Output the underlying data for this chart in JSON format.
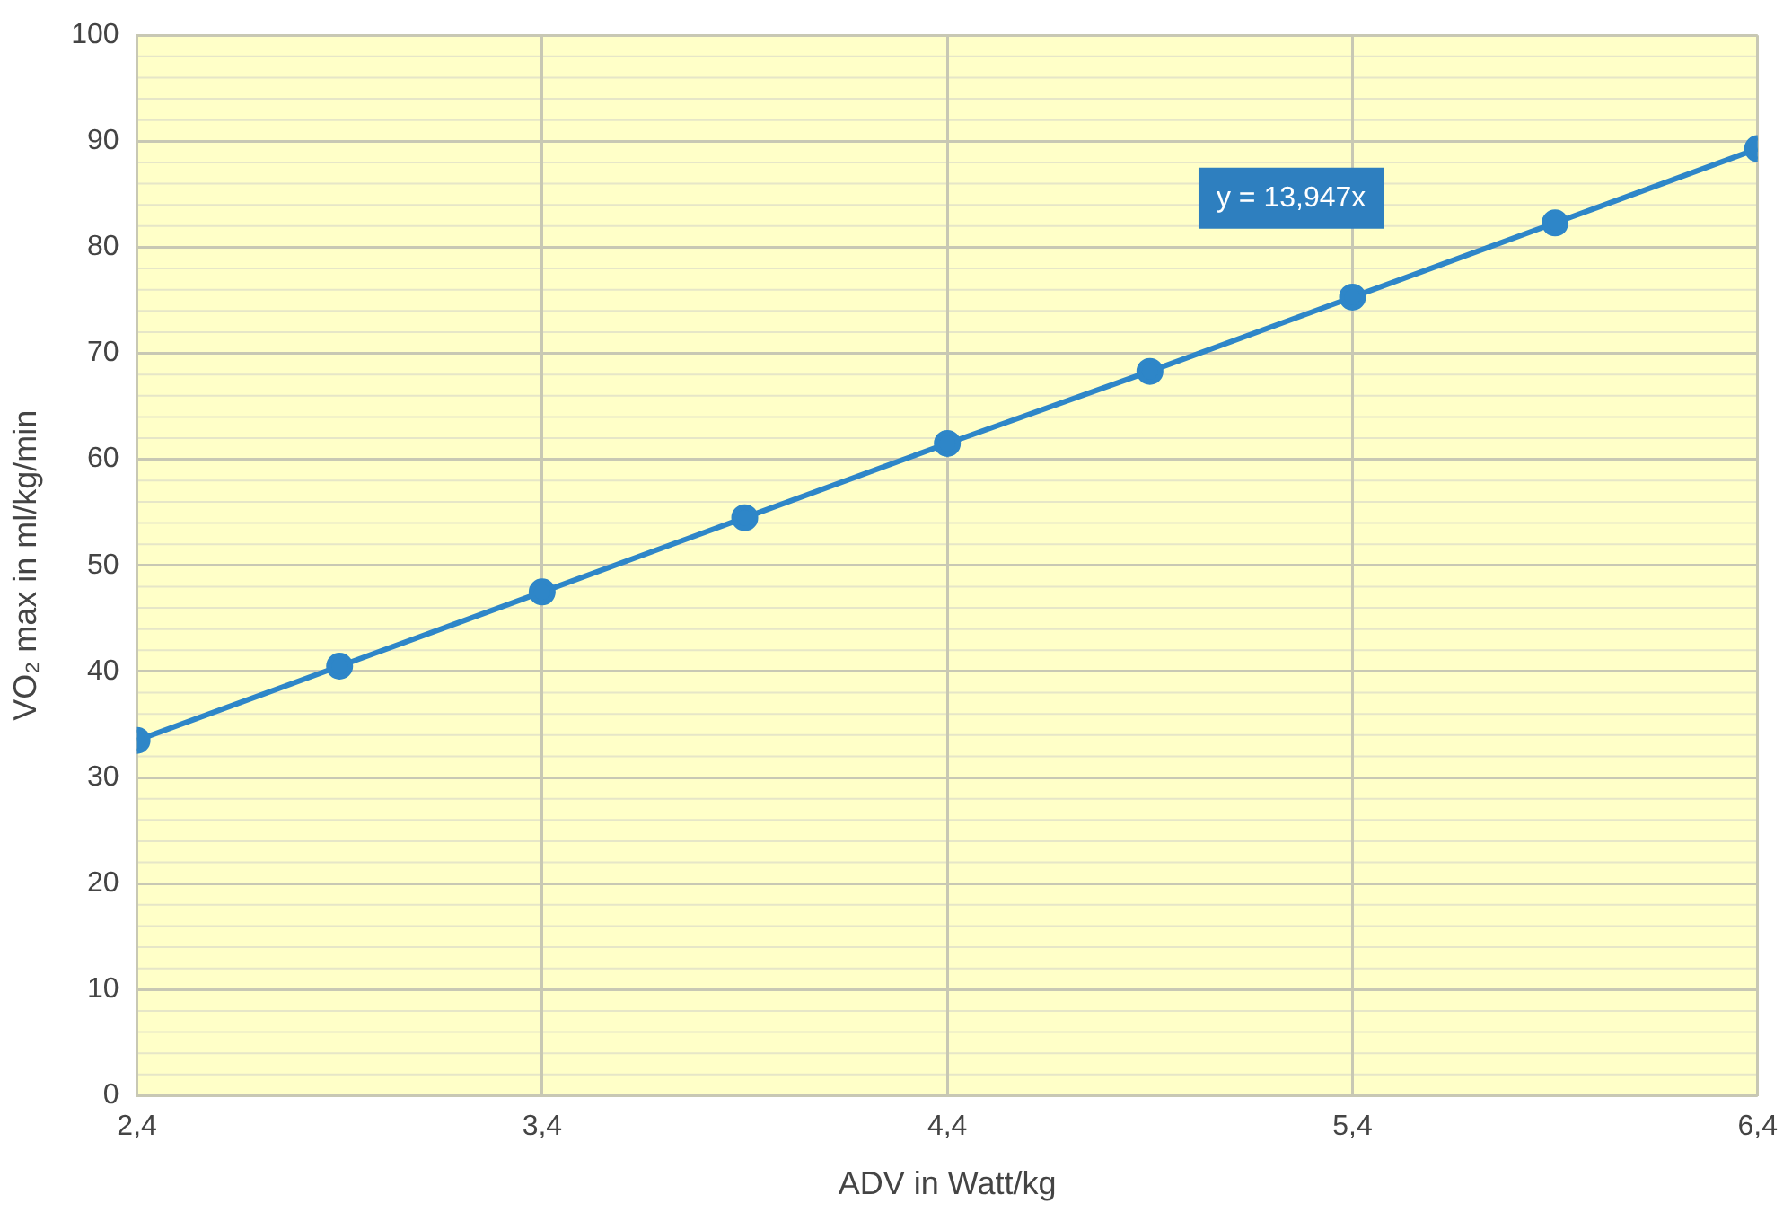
{
  "chart_data": {
    "type": "line",
    "xlabel": "ADV in Watt/kg",
    "ylabel": "VO₂ max in ml/kg/min",
    "x": [
      2.4,
      2.9,
      3.4,
      3.9,
      4.4,
      4.9,
      5.4,
      5.9,
      6.4
    ],
    "series": [
      {
        "color": "#2e86c8",
        "values": [
          33.5,
          40.5,
          47.5,
          54.5,
          61.5,
          68.3,
          75.3,
          82.3,
          89.3
        ]
      }
    ],
    "xlim": [
      2.4,
      6.4
    ],
    "xticks": [
      {
        "value": 2.4,
        "label": "2,4"
      },
      {
        "value": 3.4,
        "label": "3,4"
      },
      {
        "value": 4.4,
        "label": "4,4"
      },
      {
        "value": 5.4,
        "label": "5,4"
      },
      {
        "value": 6.4,
        "label": "6,4"
      }
    ],
    "ylim": [
      0,
      100
    ],
    "yticks": [
      0,
      10,
      20,
      30,
      40,
      50,
      60,
      70,
      80,
      90,
      100
    ],
    "grid": true,
    "marker": "circle",
    "line_style": "solid",
    "legend": false,
    "annotations": [
      "y = 13,947x"
    ]
  }
}
